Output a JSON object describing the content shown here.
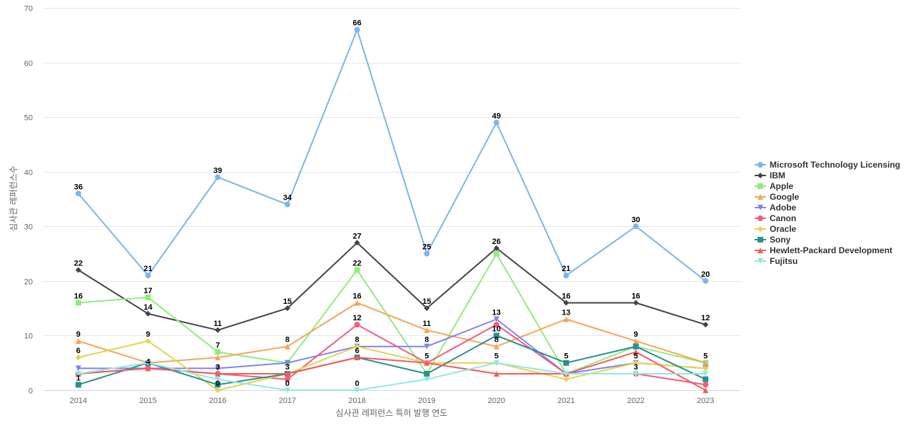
{
  "chart_data": {
    "type": "line",
    "title": "",
    "xlabel": "심사관 레퍼런스 특허 발행 연도",
    "ylabel": "심사관 레퍼런스수",
    "ylim": [
      0,
      70
    ],
    "yticks": [
      0,
      10,
      20,
      30,
      40,
      50,
      60,
      70
    ],
    "grid": true,
    "legend_position": "right",
    "categories": [
      "2014",
      "2015",
      "2016",
      "2017",
      "2018",
      "2019",
      "2020",
      "2021",
      "2022",
      "2023"
    ],
    "series": [
      {
        "name": "Microsoft Technology Licensing",
        "color": "#7cb5ec",
        "marker": "circle",
        "values": [
          36,
          21,
          39,
          34,
          66,
          25,
          49,
          21,
          30,
          20
        ]
      },
      {
        "name": "IBM",
        "color": "#434348",
        "marker": "diamond",
        "values": [
          22,
          14,
          11,
          15,
          27,
          15,
          26,
          16,
          16,
          12
        ]
      },
      {
        "name": "Apple",
        "color": "#90ed7d",
        "marker": "square",
        "values": [
          16,
          17,
          7,
          5,
          22,
          3,
          25,
          3,
          8,
          5
        ]
      },
      {
        "name": "Google",
        "color": "#f7a35c",
        "marker": "triangle",
        "values": [
          9,
          5,
          6,
          8,
          16,
          11,
          8,
          13,
          9,
          5
        ]
      },
      {
        "name": "Adobe",
        "color": "#8085e9",
        "marker": "triangle-down",
        "values": [
          4,
          4,
          4,
          5,
          8,
          8,
          13,
          3,
          5,
          4
        ]
      },
      {
        "name": "Canon",
        "color": "#f15c80",
        "marker": "circle",
        "values": [
          3,
          4,
          3,
          2,
          12,
          5,
          12,
          3,
          3,
          1
        ]
      },
      {
        "name": "Oracle",
        "color": "#e4d354",
        "marker": "diamond",
        "values": [
          6,
          9,
          0,
          3,
          8,
          5,
          5,
          2,
          5,
          4
        ]
      },
      {
        "name": "Sony",
        "color": "#2b908f",
        "marker": "square",
        "values": [
          1,
          5,
          1,
          3,
          6,
          3,
          10,
          5,
          8,
          2
        ]
      },
      {
        "name": "Hewlett-Packard Development",
        "color": "#f45b5b",
        "marker": "triangle",
        "values": [
          3,
          4,
          3,
          3,
          6,
          5,
          3,
          3,
          7,
          0
        ]
      },
      {
        "name": "Fujitsu",
        "color": "#91e8e1",
        "marker": "triangle-down",
        "values": [
          3,
          5,
          2,
          0,
          0,
          2,
          5,
          3,
          3,
          3
        ]
      }
    ],
    "data_labels": [
      {
        "series": 0,
        "points": [
          0,
          1,
          2,
          3,
          4,
          5,
          6,
          7,
          8,
          9
        ]
      },
      {
        "series": 1,
        "points": [
          0,
          1,
          2,
          3,
          4,
          5,
          6,
          7,
          8,
          9
        ]
      },
      {
        "series": 2,
        "points": [
          0,
          1,
          2,
          4
        ]
      },
      {
        "series": 3,
        "points": [
          0,
          3,
          4,
          5,
          6,
          7,
          8,
          9
        ]
      },
      {
        "series": 4,
        "points": [
          4,
          5,
          6
        ]
      },
      {
        "series": 5,
        "points": [
          4
        ]
      },
      {
        "series": 6,
        "points": [
          0,
          1,
          2,
          3,
          6,
          8
        ]
      },
      {
        "series": 7,
        "points": [
          0,
          4,
          6,
          7
        ]
      },
      {
        "series": 8,
        "points": [
          1,
          2,
          5
        ]
      },
      {
        "series": 9,
        "points": [
          3,
          4,
          8
        ]
      }
    ]
  }
}
